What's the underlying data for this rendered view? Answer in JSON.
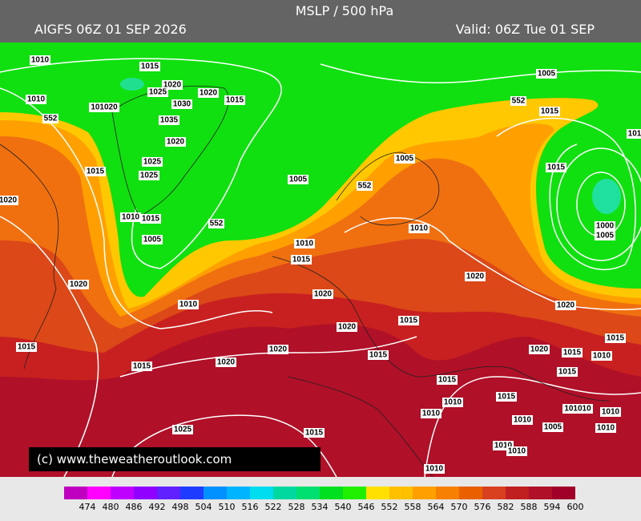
{
  "header": {
    "title": "MSLP / 500 hPa",
    "model_run": "AIGFS 06Z 01 SEP 2026",
    "valid": "Valid: 06Z Tue 01 SEP"
  },
  "copyright": "(c) www.theweatheroutlook.com",
  "isobar_labels": [
    "1010",
    "1015",
    "1020",
    "1025",
    "1020",
    "1015",
    "1030",
    "1010",
    "101020",
    "552",
    "1035",
    "1020",
    "1025",
    "1015",
    "1025",
    "1020",
    "1010",
    "1015",
    "552",
    "1005",
    "1020",
    "1010",
    "1015",
    "1015",
    "1020",
    "1020",
    "1025",
    "1015",
    "1005",
    "552",
    "1015",
    "1015",
    "101",
    "1005",
    "552",
    "1005",
    "1010",
    "1015",
    "1010",
    "1000",
    "1005",
    "1020",
    "1020",
    "1020",
    "1020",
    "1015",
    "1015",
    "1020",
    "1015",
    "1010",
    "1015",
    "1015",
    "1015",
    "1010",
    "1015",
    "1010",
    "101010",
    "1010",
    "1010",
    "1005",
    "1010",
    "1010",
    "1010",
    "1010"
  ],
  "colorbar": {
    "labels": [
      "474",
      "480",
      "486",
      "492",
      "498",
      "504",
      "510",
      "516",
      "522",
      "528",
      "534",
      "540",
      "546",
      "552",
      "558",
      "564",
      "570",
      "576",
      "582",
      "588",
      "594",
      "600"
    ],
    "colors": [
      "#c000c0",
      "#ff00ff",
      "#c000ff",
      "#9000ff",
      "#6020ff",
      "#1e3cff",
      "#0090ff",
      "#00b4ff",
      "#00dcf0",
      "#00d8a0",
      "#00e070",
      "#00e020",
      "#20f000",
      "#ffe000",
      "#ffc000",
      "#ffa000",
      "#f88000",
      "#e86000",
      "#d84020",
      "#c02020",
      "#b01028",
      "#a00028"
    ]
  }
}
